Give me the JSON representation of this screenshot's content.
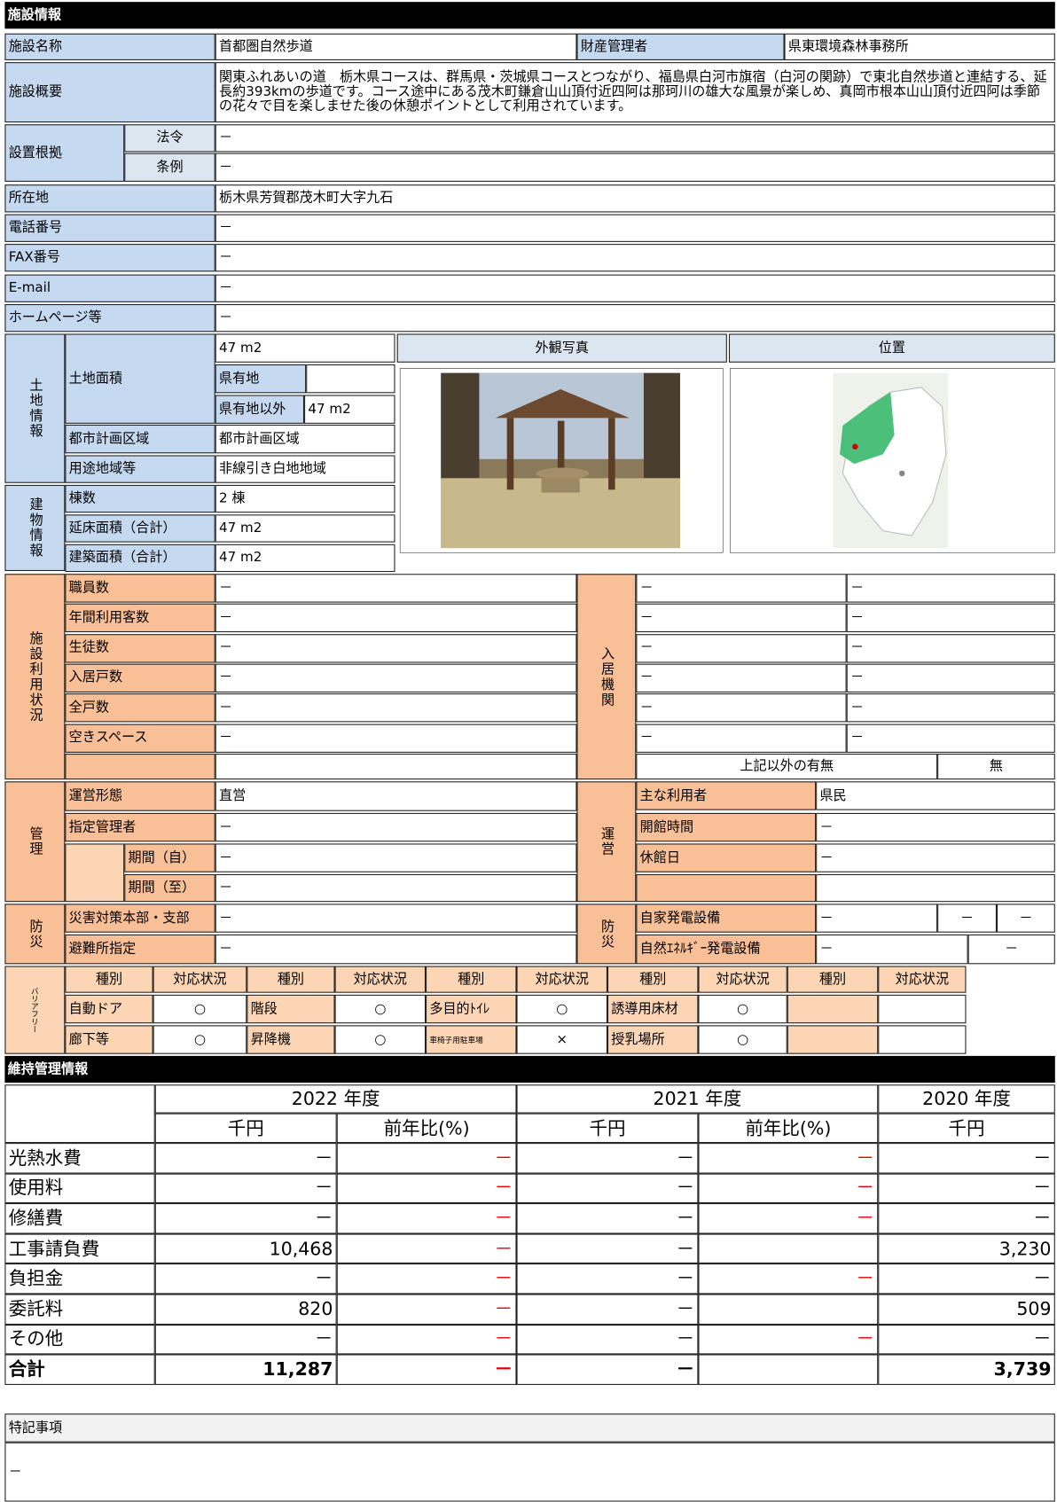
{
  "section_title": "施設情報",
  "facility": {
    "name_label": "施設名称",
    "name": "首都圏自然歩道",
    "manager_label": "財産管理者",
    "manager": "県東環境森林事務所",
    "overview_label": "施設概要",
    "overview": "関東ふれあいの道　栃木県コースは、群馬県・茨城県コースとつながり、福島県白河市旗宿（白河の関跡）で東北自然歩道と連結する、延長約393kmの歩道です。コース途中にある茂木町鎌倉山山頂付近四阿は那珂川の雄大な風景が楽しめ、真岡市根本山山頂付近四阿は季節の花々で目を楽しませた後の休憩ポイントとして利用されています。",
    "basis_label": "設置根拠",
    "law_label": "法令",
    "law": "－",
    "ordinance_label": "条例",
    "ordinance": "－",
    "address_label": "所在地",
    "address": "栃木県芳賀郡茂木町大字九石",
    "phone_label": "電話番号",
    "phone": "－",
    "fax_label": "FAX番号",
    "fax": "－",
    "email_label": "E-mail",
    "email": "－",
    "homepage_label": "ホームページ等",
    "homepage": "－"
  },
  "land": {
    "label": "土地情報",
    "area_label": "土地面積",
    "area": "47 m2",
    "pref_label": "県有地",
    "non_pref_label": "県有地以外",
    "non_pref": "47 m2",
    "city_plan_label": "都市計画区域",
    "city_plan": "都市計画区域",
    "zoning_label": "用途地域等",
    "zoning": "非線引き白地地域"
  },
  "building": {
    "label": "建物情報",
    "count_label": "棟数",
    "count": "2 棟",
    "floor_label": "延床面積（合計）",
    "floor": "47 m2",
    "building_area_label": "建築面積（合計）",
    "building_area": "47 m2"
  },
  "photo_label": "外観写真",
  "location_label": "位置",
  "usage": {
    "label": "施設利用状況",
    "rows": [
      [
        "職員数",
        "－"
      ],
      [
        "年間利用客数",
        "－"
      ],
      [
        "生徒数",
        "－"
      ],
      [
        "入居戸数",
        "－"
      ],
      [
        "全戸数",
        "－"
      ],
      [
        "空きスペース",
        "－"
      ]
    ]
  },
  "tenants": {
    "label": "入居機関",
    "rows": [
      [
        "－",
        "－"
      ],
      [
        "－",
        "－"
      ],
      [
        "－",
        "－"
      ],
      [
        "－",
        "－"
      ],
      [
        "－",
        "－"
      ],
      [
        "－",
        "－"
      ]
    ],
    "other_label": "上記以外の有無",
    "other": "無"
  },
  "management": {
    "label": "管理",
    "type_label": "運営形態",
    "type": "直営",
    "manager_label": "指定管理者",
    "manager": "－",
    "from_label": "期間（自）",
    "from": "－",
    "to_label": "期間（至）",
    "to": "－"
  },
  "operation": {
    "label": "運営",
    "users_label": "主な利用者",
    "users": "県民",
    "hours_label": "開館時間",
    "hours": "－",
    "closed_label": "休館日",
    "closed": "－"
  },
  "disaster": {
    "label": "防災",
    "hq_label": "災害対策本部・支部",
    "hq": "－",
    "shelter_label": "避難所指定",
    "shelter": "－"
  },
  "disaster_power": {
    "label": "防災",
    "generator_label": "自家発電設備",
    "generator": [
      "－",
      "－",
      "－"
    ],
    "renewable_label": "自然ｴﾈﾙｷﾞｰ発電設備",
    "renewable": [
      "－",
      "－"
    ]
  },
  "barrier_free": {
    "label": "バリアフリー",
    "headers": [
      "種別",
      "対応状況",
      "種別",
      "対応状況",
      "種別",
      "対応状況",
      "種別",
      "対応状況",
      "種別",
      "対応状況"
    ],
    "rows": [
      [
        "自動ドア",
        "○",
        "階段",
        "○",
        "多目的ﾄｲﾚ",
        "○",
        "誘導用床材",
        "○"
      ],
      [
        "廊下等",
        "○",
        "昇降機",
        "○",
        "車椅子用駐車場",
        "×",
        "授乳場所",
        "○"
      ]
    ]
  },
  "maintenance": {
    "title": "維持管理情報",
    "years": [
      "2022 年度",
      "2021 年度",
      "2020 年度"
    ],
    "units": [
      "千円",
      "前年比(%)",
      "千円",
      "前年比(%)",
      "千円"
    ],
    "rows": [
      {
        "label": "光熱水費",
        "cells": [
          "－",
          "－",
          "－",
          "－",
          "－"
        ]
      },
      {
        "label": "使用料",
        "cells": [
          "－",
          "－",
          "－",
          "－",
          "－"
        ]
      },
      {
        "label": "修繕費",
        "cells": [
          "－",
          "－",
          "－",
          "－",
          "－"
        ]
      },
      {
        "label": "工事請負費",
        "cells": [
          "10,468",
          "－",
          "－",
          null,
          "3,230"
        ]
      },
      {
        "label": "負担金",
        "cells": [
          "－",
          "－",
          "－",
          "－",
          "－"
        ]
      },
      {
        "label": "委託料",
        "cells": [
          "820",
          "－",
          "－",
          null,
          "509"
        ]
      },
      {
        "label": "その他",
        "cells": [
          "－",
          "－",
          "－",
          "－",
          "－"
        ]
      },
      {
        "label": "合計",
        "cells": [
          "11,287",
          "－",
          "－",
          null,
          "3,739"
        ]
      }
    ]
  },
  "notes": {
    "label": "特記事項",
    "text": "－"
  }
}
